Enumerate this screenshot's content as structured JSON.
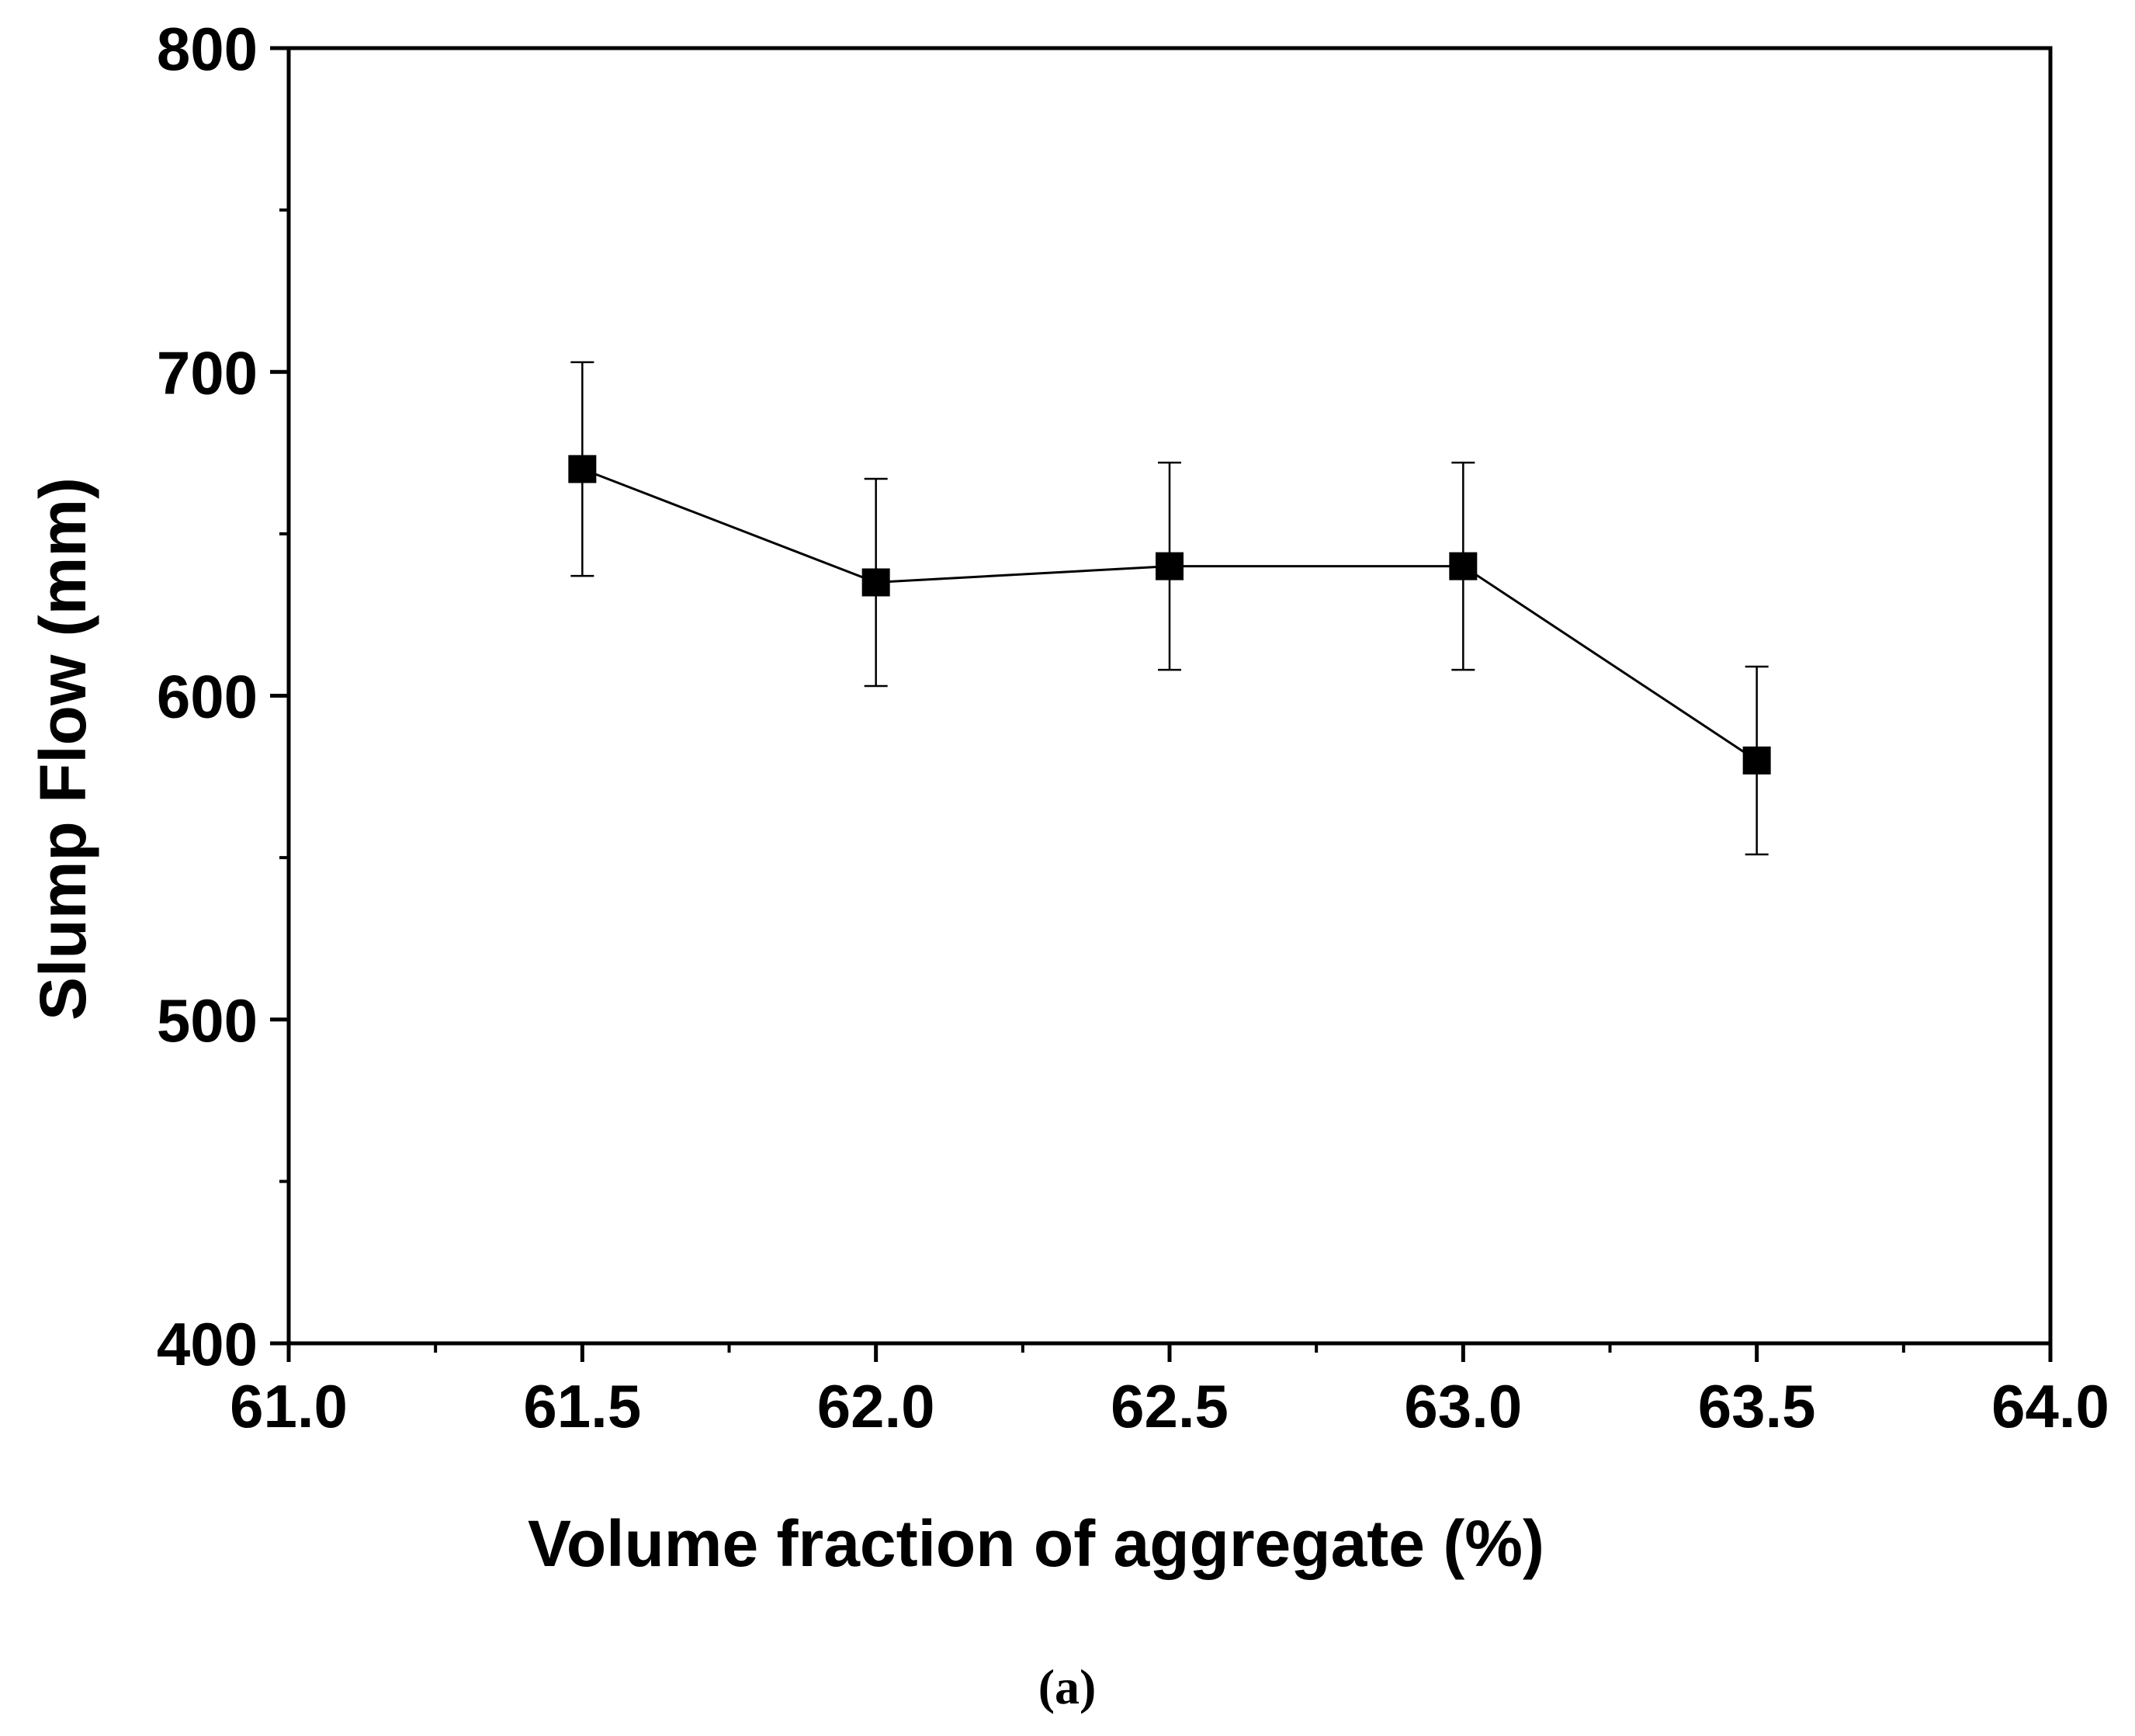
{
  "chart_data": {
    "type": "line",
    "title": "",
    "xlabel": "Volume fraction of aggregate (%)",
    "ylabel": "Slump Flow (mm)",
    "caption": "(a)",
    "xlim": [
      61.0,
      64.0
    ],
    "ylim": [
      400,
      800
    ],
    "xticks": [
      "61.0",
      "61.5",
      "62.0",
      "62.5",
      "63.0",
      "63.5",
      "64.0"
    ],
    "yticks": [
      "400",
      "500",
      "600",
      "700",
      "800"
    ],
    "grid": false,
    "series": [
      {
        "name": "Slump Flow",
        "x": [
          61.5,
          62.0,
          62.5,
          63.0,
          63.5
        ],
        "y": [
          670,
          635,
          640,
          640,
          580
        ],
        "error": [
          33,
          32,
          32,
          32,
          29
        ],
        "marker": "square",
        "color": "#000000"
      }
    ]
  }
}
